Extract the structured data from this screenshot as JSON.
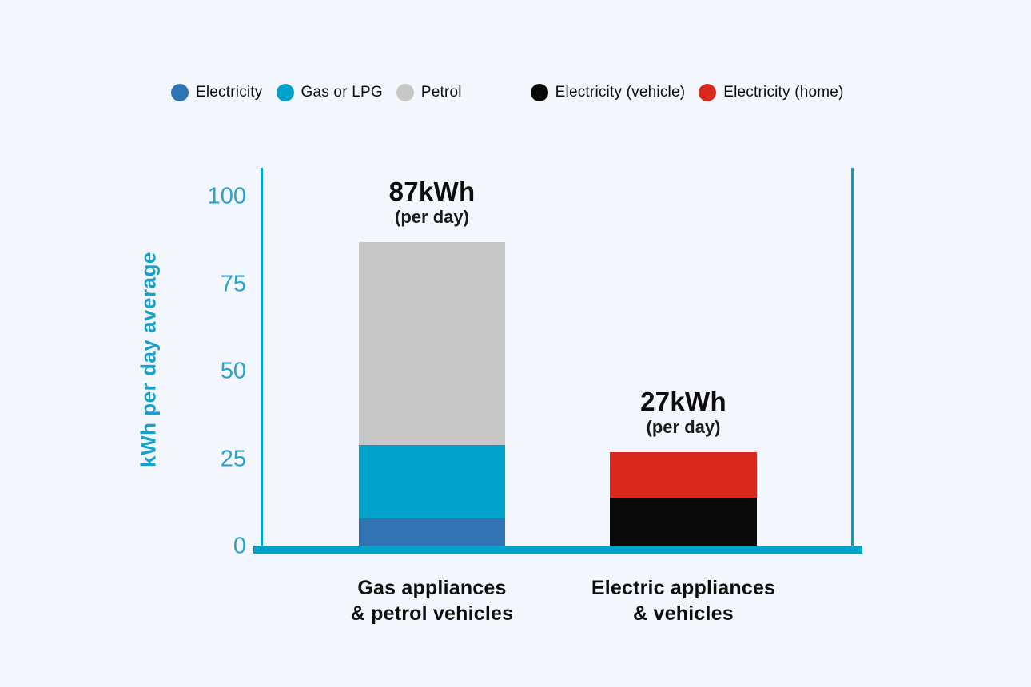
{
  "page": {
    "background": "#f3f6fc"
  },
  "legend": {
    "groups": [
      {
        "items": [
          {
            "label": "Electricity",
            "color": "#3273b4"
          },
          {
            "label": "Gas or LPG",
            "color": "#00a2c9"
          },
          {
            "label": "Petrol",
            "color": "#c7c7c7"
          }
        ]
      },
      {
        "items": [
          {
            "label": "Electricity (vehicle)",
            "color": "#0a0a0a"
          },
          {
            "label": "Electricity (home)",
            "color": "#d9281e"
          }
        ]
      }
    ]
  },
  "chart_data": {
    "type": "bar",
    "stacked": true,
    "title": "",
    "xlabel": "",
    "ylabel": "kWh per day average",
    "yticks": [
      0,
      25,
      50,
      75,
      100
    ],
    "ylim": [
      0,
      108
    ],
    "grid": false,
    "legend_position": "top",
    "axis_color": "#00a2c9",
    "axis_text_color": "#2aa2c9",
    "categories": [
      "Gas appliances\n& petrol vehicles",
      "Electric appliances\n& vehicles"
    ],
    "bars": [
      {
        "category": "Gas appliances\n& petrol vehicles",
        "total": 87,
        "total_label": "87kWh",
        "total_sublabel": "(per day)",
        "segments": [
          {
            "name": "Electricity",
            "value": 8,
            "color": "#3273b4"
          },
          {
            "name": "Gas or LPG",
            "value": 21,
            "color": "#00a2c9"
          },
          {
            "name": "Petrol",
            "value": 58,
            "color": "#c7c7c7"
          }
        ]
      },
      {
        "category": "Electric appliances\n& vehicles",
        "total": 27,
        "total_label": "27kWh",
        "total_sublabel": "(per day)",
        "segments": [
          {
            "name": "Electricity (vehicle)",
            "value": 14,
            "color": "#0a0a0a"
          },
          {
            "name": "Electricity (home)",
            "value": 13,
            "color": "#d9281e"
          }
        ]
      }
    ]
  }
}
